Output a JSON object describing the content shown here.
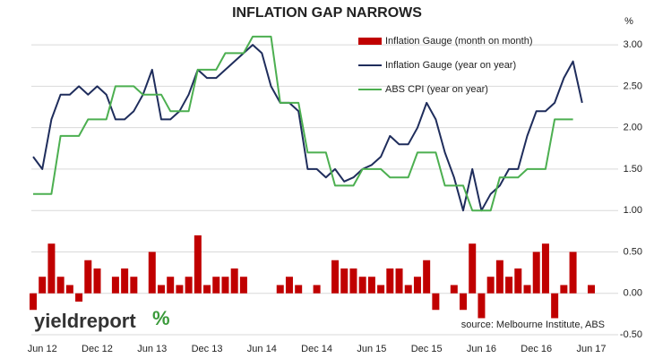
{
  "chart_data": {
    "type": "combo",
    "title": "INFLATION GAP NARROWS",
    "y_unit": "%",
    "source": "source: Melbourne Institute, ABS",
    "logo": {
      "text": "yieldreport",
      "symbol": "%"
    },
    "categories": [
      null,
      "Jun 12",
      null,
      null,
      null,
      null,
      null,
      "Dec 12",
      null,
      null,
      null,
      null,
      null,
      "Jun 13",
      null,
      null,
      null,
      null,
      null,
      "Dec 13",
      null,
      null,
      null,
      null,
      null,
      "Jun 14",
      null,
      null,
      null,
      null,
      null,
      "Dec 14",
      null,
      null,
      null,
      null,
      null,
      "Jun 15",
      null,
      null,
      null,
      null,
      null,
      "Dec 15",
      null,
      null,
      null,
      null,
      null,
      "Jun 16",
      null,
      null,
      null,
      null,
      null,
      "Dec 16",
      null,
      null,
      null,
      null,
      null,
      "Jun 17"
    ],
    "series": [
      {
        "name": "Inflation Gauge (month on month)",
        "type": "bar",
        "color": "#c00000",
        "values": [
          -0.2,
          0.2,
          0.6,
          0.2,
          0.1,
          -0.1,
          0.4,
          0.3,
          0.0,
          0.2,
          0.3,
          0.2,
          0.0,
          0.5,
          0.1,
          0.2,
          0.1,
          0.2,
          0.7,
          0.1,
          0.2,
          0.2,
          0.3,
          0.2,
          0.0,
          0.0,
          0.0,
          0.1,
          0.2,
          0.1,
          0.0,
          0.1,
          0.0,
          0.4,
          0.3,
          0.3,
          0.2,
          0.2,
          0.1,
          0.3,
          0.3,
          0.1,
          0.2,
          0.4,
          -0.2,
          0.0,
          0.1,
          -0.2,
          0.6,
          -0.3,
          0.2,
          0.4,
          0.2,
          0.3,
          0.1,
          0.5,
          0.6,
          -0.3,
          0.1,
          0.5,
          0.0,
          0.1
        ]
      },
      {
        "name": "Inflation Gauge (year on year)",
        "type": "line",
        "color": "#1f2d5c",
        "values": [
          1.65,
          1.5,
          2.1,
          2.4,
          2.4,
          2.5,
          2.4,
          2.5,
          2.4,
          2.1,
          2.1,
          2.2,
          2.4,
          2.7,
          2.1,
          2.1,
          2.2,
          2.4,
          2.7,
          2.6,
          2.6,
          2.7,
          2.8,
          2.9,
          3.0,
          2.9,
          2.5,
          2.3,
          2.3,
          2.2,
          1.5,
          1.5,
          1.4,
          1.5,
          1.35,
          1.4,
          1.5,
          1.55,
          1.65,
          1.9,
          1.8,
          1.8,
          2.0,
          2.3,
          2.1,
          1.7,
          1.4,
          1.0,
          1.5,
          1.0,
          1.2,
          1.3,
          1.5,
          1.5,
          1.9,
          2.2,
          2.2,
          2.3,
          2.6,
          2.8,
          2.3,
          null
        ]
      },
      {
        "name": "ABS CPI (year on year)",
        "type": "line",
        "color": "#4caf50",
        "values": [
          1.2,
          1.2,
          1.2,
          1.9,
          1.9,
          1.9,
          2.1,
          2.1,
          2.1,
          2.5,
          2.5,
          2.5,
          2.4,
          2.4,
          2.4,
          2.2,
          2.2,
          2.2,
          2.7,
          2.7,
          2.7,
          2.9,
          2.9,
          2.9,
          3.1,
          3.1,
          3.1,
          2.3,
          2.3,
          2.3,
          1.7,
          1.7,
          1.7,
          1.3,
          1.3,
          1.3,
          1.5,
          1.5,
          1.5,
          1.4,
          1.4,
          1.4,
          1.7,
          1.7,
          1.7,
          1.3,
          1.3,
          1.3,
          1.0,
          1.0,
          1.0,
          1.4,
          1.4,
          1.4,
          1.5,
          1.5,
          1.5,
          2.1,
          2.1,
          2.1,
          null,
          null
        ]
      }
    ],
    "ylim": [
      -0.5,
      3.25
    ],
    "yticks": [
      {
        "value": -0.5,
        "label": "-0.50"
      },
      {
        "value": 0,
        "label": "0.00"
      },
      {
        "value": 0.5,
        "label": "0.50"
      },
      {
        "value": 1,
        "label": "1.00"
      },
      {
        "value": 1.5,
        "label": "1.50"
      },
      {
        "value": 2,
        "label": "2.00"
      },
      {
        "value": 2.5,
        "label": "2.50"
      },
      {
        "value": 3,
        "label": "3.00"
      }
    ],
    "grid": true
  }
}
